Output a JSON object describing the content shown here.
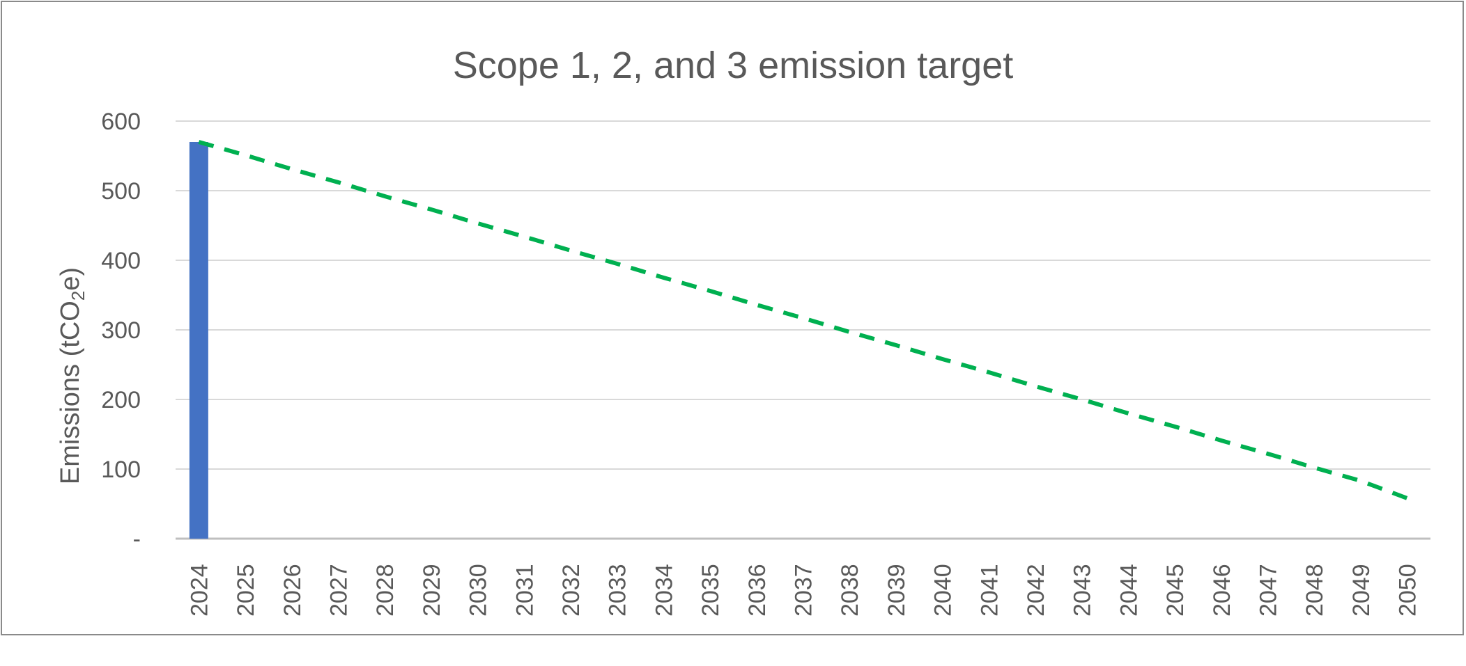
{
  "chart_data": {
    "type": "bar",
    "title": "Scope 1, 2, and 3 emission target",
    "ylabel": "Emissions (tCO2e)",
    "ylabel_parts": {
      "before": "Emissions (tCO",
      "subscript": "2",
      "after": "e)"
    },
    "xlabel": "",
    "ylim": [
      0,
      600
    ],
    "y_ticks": [
      0,
      100,
      200,
      300,
      400,
      500,
      600
    ],
    "y_tick_labels": [
      "-",
      "100",
      "200",
      "300",
      "400",
      "500",
      "600"
    ],
    "grid": true,
    "categories": [
      "2024",
      "2025",
      "2026",
      "2027",
      "2028",
      "2029",
      "2030",
      "2031",
      "2032",
      "2033",
      "2034",
      "2035",
      "2036",
      "2037",
      "2038",
      "2039",
      "2040",
      "2041",
      "2042",
      "2043",
      "2044",
      "2045",
      "2046",
      "2047",
      "2048",
      "2049",
      "2050"
    ],
    "series": [
      {
        "type": "bar",
        "color": "#4472C4",
        "values": [
          570,
          null,
          null,
          null,
          null,
          null,
          null,
          null,
          null,
          null,
          null,
          null,
          null,
          null,
          null,
          null,
          null,
          null,
          null,
          null,
          null,
          null,
          null,
          null,
          null,
          null,
          null
        ]
      },
      {
        "type": "line",
        "style": "dashed",
        "color": "#00B050",
        "values": [
          570,
          551,
          531,
          512,
          492,
          473,
          453,
          434,
          414,
          395,
          375,
          356,
          336,
          317,
          297,
          278,
          258,
          239,
          219,
          200,
          180,
          161,
          141,
          122,
          102,
          83,
          58
        ]
      }
    ]
  }
}
